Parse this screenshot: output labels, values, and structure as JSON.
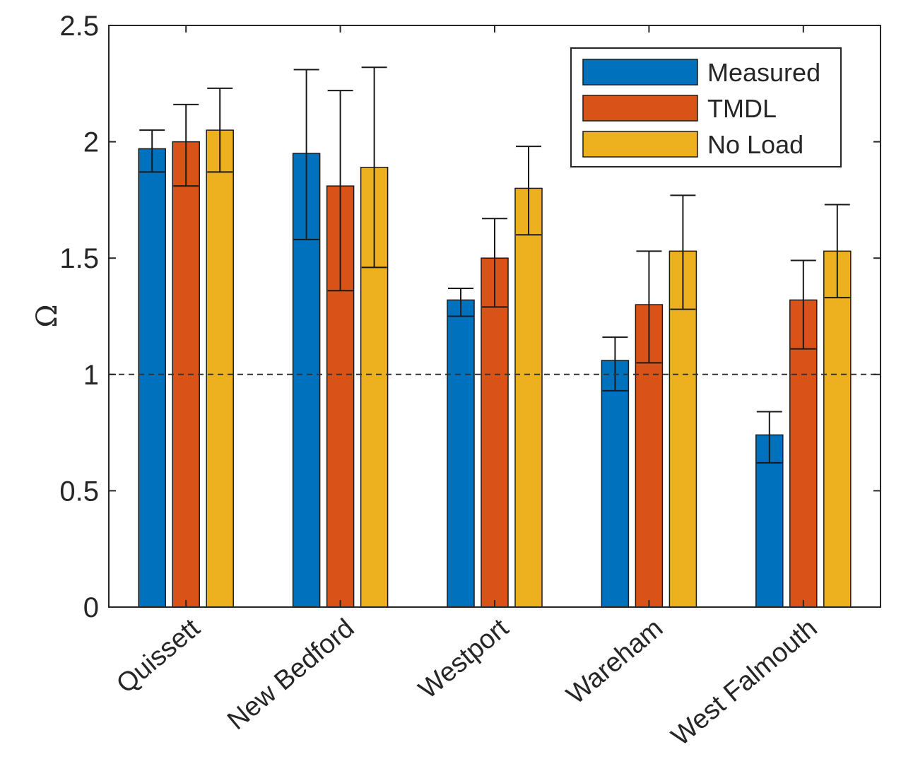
{
  "chart_data": {
    "type": "bar",
    "title": "",
    "xlabel": "",
    "ylabel": "Ω",
    "ylim": [
      0,
      2.5
    ],
    "yticks": [
      0,
      0.5,
      1,
      1.5,
      2,
      2.5
    ],
    "ytick_labels": [
      "0",
      "0.5",
      "1",
      "1.5",
      "2",
      "2.5"
    ],
    "categories": [
      "Quissett",
      "New Bedford",
      "Westport",
      "Wareham",
      "West Falmouth"
    ],
    "reference_line": {
      "y": 1,
      "style": "dashed",
      "color": "#333333"
    },
    "legend_position": "top-right",
    "grid": false,
    "series": [
      {
        "name": "Measured",
        "color": "#0072BD",
        "values": [
          1.97,
          1.95,
          1.32,
          1.06,
          0.74
        ],
        "err_low": [
          1.87,
          1.58,
          1.25,
          0.93,
          0.62
        ],
        "err_high": [
          2.05,
          2.31,
          1.37,
          1.16,
          0.84
        ]
      },
      {
        "name": "TMDL",
        "color": "#D95319",
        "values": [
          2.0,
          1.81,
          1.5,
          1.3,
          1.32
        ],
        "err_low": [
          1.81,
          1.36,
          1.29,
          1.05,
          1.11
        ],
        "err_high": [
          2.16,
          2.22,
          1.67,
          1.53,
          1.49
        ]
      },
      {
        "name": "No Load",
        "color": "#EDB120",
        "values": [
          2.05,
          1.89,
          1.8,
          1.53,
          1.53
        ],
        "err_low": [
          1.87,
          1.46,
          1.6,
          1.28,
          1.33
        ],
        "err_high": [
          2.23,
          2.32,
          1.98,
          1.77,
          1.73
        ]
      }
    ]
  }
}
